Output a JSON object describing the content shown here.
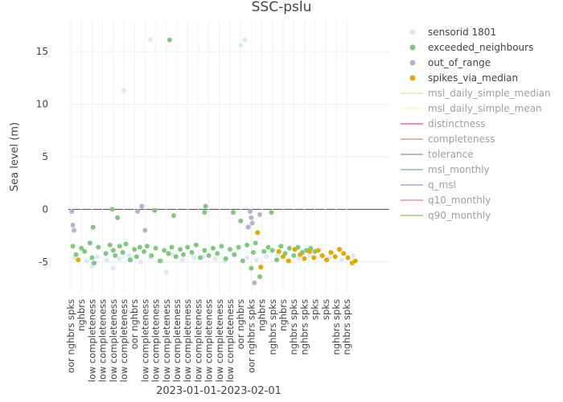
{
  "chart_data": {
    "type": "scatter",
    "title": "SSC-pslu",
    "xlabel": "2023-01-01-2023-02-01",
    "ylabel": "Sea level (m)",
    "ylim": [
      -8,
      18
    ],
    "yticks": [
      -5,
      0,
      5,
      10,
      15
    ],
    "grid": true,
    "legend_position": "right",
    "x_category_labels": [
      "oor nghbrs spks",
      "nghbrs",
      "low completeness",
      "low completeness",
      "low completeness",
      "low completeness",
      "oor nghbrs",
      "low completeness",
      "low completeness",
      "low completeness",
      "low completeness",
      "low completeness",
      "low completeness",
      "low completeness",
      "low completeness",
      "low completeness",
      "oor nghbrs",
      "oor nghbrs spks",
      "nghbrs",
      "nghbrs spks",
      "nghbrs",
      "nghbrs spks",
      "nghbrs spks",
      "spks",
      "spks",
      "nghbrs spks",
      "nghbrs spks"
    ],
    "series": [
      {
        "name": "sensorid 1801",
        "color": "#dce9f7",
        "visible": true,
        "x": [
          0.3,
          1.5,
          2.5,
          3.4,
          4.6,
          5.5,
          6.6,
          7.5,
          8.6,
          9.5,
          10.5,
          11.6,
          12.5,
          13.6,
          14.5,
          15.4,
          16.6,
          17.5,
          18.4,
          19.5,
          20.6,
          21.5,
          22.5,
          23.6,
          24.4,
          25.5,
          26.6,
          5.0,
          7.5,
          16.0,
          16.4,
          16.8,
          2.0,
          4.0,
          9.0
        ],
        "y": [
          -4.6,
          -4.9,
          -4.5,
          -4.8,
          -4.7,
          -4.4,
          -5.0,
          -4.6,
          -4.9,
          -4.3,
          -4.8,
          -4.6,
          -4.5,
          -4.7,
          -4.9,
          -4.4,
          -4.6,
          -4.8,
          -4.5,
          -4.3,
          -4.9,
          -4.7,
          -4.4,
          -4.5,
          -4.6,
          -4.8,
          -4.4,
          11.3,
          16.1,
          15.6,
          16.1,
          -1.6,
          -5.4,
          -5.6,
          -6.0
        ]
      },
      {
        "name": "exceeded_neighbours",
        "color": "#7fc97f",
        "visible": true,
        "x": [
          0.2,
          0.5,
          1.0,
          1.3,
          1.8,
          2.0,
          2.2,
          2.6,
          3.3,
          3.7,
          4.0,
          4.2,
          4.6,
          4.9,
          5.2,
          5.6,
          6.0,
          6.2,
          6.5,
          6.9,
          7.2,
          7.6,
          8.0,
          8.4,
          8.8,
          9.2,
          9.5,
          9.9,
          10.3,
          10.6,
          11.0,
          11.4,
          11.8,
          12.2,
          12.6,
          13.0,
          13.4,
          13.8,
          14.2,
          14.6,
          15.0,
          15.4,
          15.8,
          16.2,
          16.6,
          17.0,
          17.4,
          17.8,
          18.2,
          18.6,
          19.0,
          19.4,
          19.8,
          20.2,
          20.6,
          21.0,
          21.4,
          21.8,
          22.2,
          22.6,
          23.0,
          2.1,
          3.9,
          4.4,
          7.9,
          9.3,
          9.7,
          12.6,
          12.7,
          15.3,
          16.0,
          17.2,
          18.9
        ],
        "y": [
          -3.5,
          -4.3,
          -3.7,
          -4.0,
          -3.2,
          -4.6,
          -5.1,
          -3.6,
          -4.2,
          -3.4,
          -3.9,
          -4.4,
          -3.5,
          -4.1,
          -3.3,
          -4.8,
          -3.8,
          -4.5,
          -3.6,
          -4.0,
          -3.5,
          -4.4,
          -3.7,
          -4.9,
          -3.9,
          -4.2,
          -3.6,
          -4.5,
          -3.8,
          -4.3,
          -3.6,
          -4.1,
          -3.4,
          -4.6,
          -3.9,
          -4.4,
          -3.7,
          -4.2,
          -3.5,
          -4.7,
          -3.8,
          -4.3,
          -3.6,
          -4.9,
          -3.4,
          -5.6,
          -3.2,
          -6.4,
          -4.0,
          -3.6,
          -3.9,
          -4.8,
          -3.5,
          -4.2,
          -3.7,
          -4.4,
          -3.6,
          -4.1,
          -3.9,
          -3.7,
          -4.0,
          -1.7,
          0.0,
          -0.8,
          -0.1,
          16.1,
          -0.6,
          -0.3,
          0.3,
          -0.3,
          -1.1,
          -4.1,
          -0.3
        ],
        "y_extra_note": ""
      },
      {
        "name": "out_of_range",
        "color": "#beaed4",
        "visible": true,
        "x": [
          0.1,
          0.2,
          0.3,
          6.3,
          6.7,
          7.0,
          16.9,
          17.0,
          17.1,
          17.3,
          17.8,
          16.7
        ],
        "y": [
          -0.2,
          -1.5,
          -2.0,
          -0.2,
          0.3,
          -2.0,
          -0.2,
          -0.8,
          -1.3,
          -7.0,
          -0.5,
          -1.7
        ]
      },
      {
        "name": "spikes_via_median",
        "color": "#e6a700",
        "visible": true,
        "x": [
          0.7,
          17.6,
          17.9,
          19.6,
          20.0,
          20.5,
          21.1,
          21.6,
          22.0,
          22.5,
          22.9,
          23.3,
          23.7,
          24.1,
          24.5,
          24.9,
          25.3,
          25.7,
          26.1,
          26.5,
          26.8
        ],
        "y": [
          -4.8,
          -2.2,
          -5.5,
          -4.0,
          -4.5,
          -4.9,
          -3.8,
          -4.3,
          -4.7,
          -4.0,
          -4.6,
          -3.9,
          -4.4,
          -4.8,
          -4.1,
          -4.5,
          -3.8,
          -4.2,
          -4.6,
          -5.1,
          -4.9
        ]
      }
    ],
    "hidden_series": [
      {
        "name": "msl_daily_simple_median",
        "color": "#f6e3c5"
      },
      {
        "name": "msl_daily_simple_mean",
        "color": "#fdfbc8"
      },
      {
        "name": "distinctness",
        "color": "#f08ab7"
      },
      {
        "name": "completeness",
        "color": "#efb0a0"
      },
      {
        "name": "tolerance",
        "color": "#b8b8b8"
      },
      {
        "name": "msl_monthly",
        "color": "#9ed1c2"
      },
      {
        "name": "q_msl",
        "color": "#c7b8e0"
      },
      {
        "name": "q10_monthly",
        "color": "#f2a8cd"
      },
      {
        "name": "q90_monthly",
        "color": "#b9da93"
      }
    ]
  },
  "legend": {
    "visible_text_color": "#444444",
    "hidden_text_color": "#a0a0a0"
  }
}
